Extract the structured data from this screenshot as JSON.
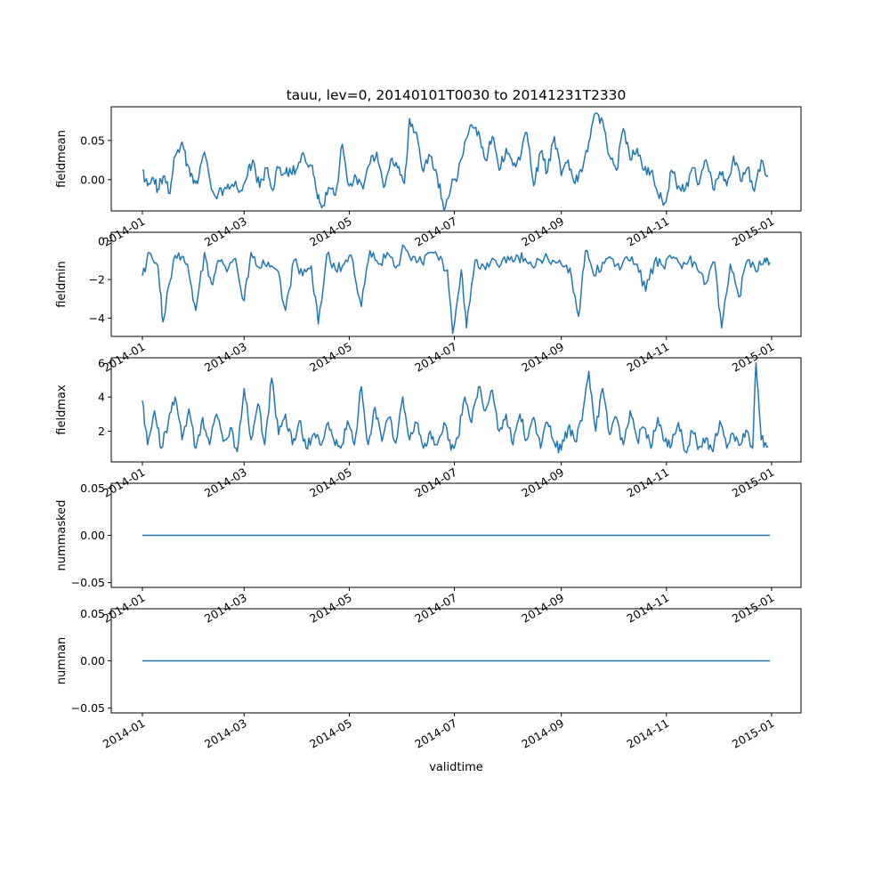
{
  "chart_data": {
    "type": "line",
    "title": "tauu, lev=0, 20140101T0030 to 20141231T2330",
    "xlabel": "validtime",
    "line_color": "#1f77b4",
    "grid": false,
    "x_ticks": [
      "2014-01",
      "2014-03",
      "2014-05",
      "2014-07",
      "2014-09",
      "2014-11",
      "2015-01"
    ],
    "x_range": [
      "2014-01-01",
      "2014-12-31"
    ],
    "panels": [
      {
        "ylabel": "fieldmean",
        "ylim": [
          -0.04,
          0.093
        ],
        "yticks": [
          "0.00",
          "0.05"
        ],
        "ytick_values": [
          0.0,
          0.05
        ],
        "series": {
          "x": [
            "2014-01-01",
            "2014-01-04",
            "2014-01-07",
            "2014-01-10",
            "2014-01-13",
            "2014-01-17",
            "2014-01-20",
            "2014-01-24",
            "2014-01-27",
            "2014-01-30",
            "2014-02-02",
            "2014-02-06",
            "2014-02-10",
            "2014-02-14",
            "2014-02-18",
            "2014-02-22",
            "2014-02-27",
            "2014-03-03",
            "2014-03-06",
            "2014-03-10",
            "2014-03-14",
            "2014-03-17",
            "2014-03-21",
            "2014-03-25",
            "2014-03-28",
            "2014-04-01",
            "2014-04-05",
            "2014-04-09",
            "2014-04-12",
            "2014-04-15",
            "2014-04-19",
            "2014-04-23",
            "2014-04-27",
            "2014-05-01",
            "2014-05-05",
            "2014-05-09",
            "2014-05-13",
            "2014-05-17",
            "2014-05-21",
            "2014-05-25",
            "2014-05-29",
            "2014-06-02",
            "2014-06-05",
            "2014-06-09",
            "2014-06-13",
            "2014-06-17",
            "2014-06-21",
            "2014-06-25",
            "2014-06-29",
            "2014-07-03",
            "2014-07-07",
            "2014-07-11",
            "2014-07-15",
            "2014-07-19",
            "2014-07-23",
            "2014-07-27",
            "2014-07-31",
            "2014-08-04",
            "2014-08-08",
            "2014-08-12",
            "2014-08-16",
            "2014-08-20",
            "2014-08-24",
            "2014-08-28",
            "2014-09-01",
            "2014-09-05",
            "2014-09-09",
            "2014-09-13",
            "2014-09-17",
            "2014-09-21",
            "2014-09-25",
            "2014-09-29",
            "2014-10-03",
            "2014-10-07",
            "2014-10-11",
            "2014-10-15",
            "2014-10-19",
            "2014-10-23",
            "2014-10-27",
            "2014-10-31",
            "2014-11-04",
            "2014-11-08",
            "2014-11-12",
            "2014-11-16",
            "2014-11-20",
            "2014-11-24",
            "2014-11-28",
            "2014-12-02",
            "2014-12-06",
            "2014-12-10",
            "2014-12-14",
            "2014-12-18",
            "2014-12-22",
            "2014-12-26",
            "2014-12-30"
          ],
          "y": [
            0.012,
            -0.008,
            0.003,
            -0.012,
            0.004,
            -0.018,
            0.03,
            0.048,
            0.02,
            0.005,
            -0.005,
            0.035,
            -0.012,
            -0.018,
            -0.01,
            -0.006,
            -0.014,
            0.005,
            0.025,
            -0.01,
            0.015,
            -0.012,
            0.015,
            0.008,
            0.01,
            0.015,
            0.03,
            0.018,
            -0.015,
            -0.036,
            -0.01,
            -0.02,
            0.045,
            -0.008,
            0.003,
            -0.012,
            0.02,
            0.035,
            -0.01,
            0.025,
            0.015,
            -0.005,
            0.078,
            0.06,
            0.01,
            0.03,
            0.005,
            -0.04,
            -0.01,
            0.005,
            0.048,
            0.07,
            0.062,
            0.025,
            0.055,
            0.012,
            0.04,
            0.018,
            0.025,
            0.06,
            -0.008,
            0.035,
            0.01,
            0.055,
            0.005,
            0.025,
            -0.005,
            0.01,
            0.048,
            0.085,
            0.075,
            0.03,
            0.012,
            0.065,
            0.025,
            0.04,
            0.012,
            0.01,
            -0.018,
            -0.03,
            0.012,
            -0.008,
            -0.012,
            0.015,
            -0.005,
            0.025,
            -0.012,
            0.01,
            -0.008,
            0.03,
            -0.002,
            0.015,
            -0.015,
            0.025,
            0.005
          ]
        }
      },
      {
        "ylabel": "fieldmin",
        "ylim": [
          -4.95,
          0.45
        ],
        "yticks": [
          "−4",
          "−2",
          "0"
        ],
        "ytick_values": [
          -4,
          -2,
          0
        ],
        "series": {
          "x": [
            "2014-01-01",
            "2014-01-05",
            "2014-01-10",
            "2014-01-13",
            "2014-01-19",
            "2014-01-24",
            "2014-01-28",
            "2014-02-01",
            "2014-02-06",
            "2014-02-10",
            "2014-02-14",
            "2014-02-19",
            "2014-02-24",
            "2014-03-01",
            "2014-03-05",
            "2014-03-10",
            "2014-03-15",
            "2014-03-20",
            "2014-03-25",
            "2014-03-30",
            "2014-04-04",
            "2014-04-09",
            "2014-04-13",
            "2014-04-18",
            "2014-04-23",
            "2014-04-28",
            "2014-05-03",
            "2014-05-08",
            "2014-05-13",
            "2014-05-18",
            "2014-05-23",
            "2014-05-28",
            "2014-06-02",
            "2014-06-07",
            "2014-06-12",
            "2014-06-17",
            "2014-06-22",
            "2014-06-27",
            "2014-06-30",
            "2014-07-05",
            "2014-07-08",
            "2014-07-13",
            "2014-07-18",
            "2014-07-23",
            "2014-07-28",
            "2014-08-02",
            "2014-08-07",
            "2014-08-12",
            "2014-08-17",
            "2014-08-22",
            "2014-08-27",
            "2014-09-01",
            "2014-09-06",
            "2014-09-11",
            "2014-09-15",
            "2014-09-20",
            "2014-09-25",
            "2014-09-30",
            "2014-10-05",
            "2014-10-10",
            "2014-10-15",
            "2014-10-20",
            "2014-10-25",
            "2014-10-30",
            "2014-11-04",
            "2014-11-09",
            "2014-11-14",
            "2014-11-19",
            "2014-11-24",
            "2014-11-29",
            "2014-12-03",
            "2014-12-08",
            "2014-12-13",
            "2014-12-18",
            "2014-12-23",
            "2014-12-28",
            "2014-12-31"
          ],
          "y": [
            -1.8,
            -0.6,
            -1.3,
            -4.2,
            -1.0,
            -0.8,
            -1.7,
            -3.6,
            -0.6,
            -2.2,
            -1.0,
            -1.6,
            -0.9,
            -3.1,
            -0.6,
            -1.4,
            -1.1,
            -1.5,
            -3.6,
            -1.0,
            -1.8,
            -1.3,
            -4.3,
            -0.7,
            -1.5,
            -1.2,
            -1.0,
            -3.4,
            -0.5,
            -1.2,
            -0.6,
            -1.4,
            -0.3,
            -0.8,
            -1.1,
            -0.6,
            -1.0,
            -1.5,
            -4.8,
            -1.5,
            -4.5,
            -1.0,
            -1.3,
            -0.9,
            -1.2,
            -1.0,
            -0.8,
            -1.1,
            -1.3,
            -0.9,
            -1.0,
            -1.2,
            -1.4,
            -3.9,
            -0.5,
            -1.8,
            -1.1,
            -0.9,
            -1.5,
            -1.0,
            -1.2,
            -2.6,
            -1.1,
            -1.3,
            -0.9,
            -1.2,
            -1.0,
            -1.5,
            -2.2,
            -1.1,
            -4.5,
            -1.2,
            -2.9,
            -1.0,
            -1.6,
            -0.9,
            -1.1
          ]
        }
      },
      {
        "ylabel": "fieldmax",
        "ylim": [
          0.2,
          6.3
        ],
        "yticks": [
          "2",
          "4",
          "6"
        ],
        "ytick_values": [
          2,
          4,
          6
        ],
        "series": {
          "x": [
            "2014-01-01",
            "2014-01-04",
            "2014-01-08",
            "2014-01-12",
            "2014-01-16",
            "2014-01-20",
            "2014-01-24",
            "2014-01-28",
            "2014-02-01",
            "2014-02-05",
            "2014-02-09",
            "2014-02-13",
            "2014-02-17",
            "2014-02-21",
            "2014-02-25",
            "2014-03-01",
            "2014-03-05",
            "2014-03-09",
            "2014-03-13",
            "2014-03-17",
            "2014-03-21",
            "2014-03-25",
            "2014-03-29",
            "2014-04-02",
            "2014-04-06",
            "2014-04-10",
            "2014-04-14",
            "2014-04-18",
            "2014-04-22",
            "2014-04-26",
            "2014-04-30",
            "2014-05-04",
            "2014-05-08",
            "2014-05-12",
            "2014-05-16",
            "2014-05-20",
            "2014-05-24",
            "2014-05-28",
            "2014-06-01",
            "2014-06-05",
            "2014-06-09",
            "2014-06-13",
            "2014-06-17",
            "2014-06-21",
            "2014-06-25",
            "2014-06-29",
            "2014-07-03",
            "2014-07-07",
            "2014-07-11",
            "2014-07-15",
            "2014-07-19",
            "2014-07-23",
            "2014-07-27",
            "2014-07-31",
            "2014-08-04",
            "2014-08-08",
            "2014-08-12",
            "2014-08-16",
            "2014-08-20",
            "2014-08-24",
            "2014-08-28",
            "2014-09-01",
            "2014-09-05",
            "2014-09-09",
            "2014-09-13",
            "2014-09-17",
            "2014-09-21",
            "2014-09-25",
            "2014-09-29",
            "2014-10-03",
            "2014-10-07",
            "2014-10-11",
            "2014-10-15",
            "2014-10-19",
            "2014-10-23",
            "2014-10-27",
            "2014-10-31",
            "2014-11-04",
            "2014-11-08",
            "2014-11-12",
            "2014-11-16",
            "2014-11-20",
            "2014-11-24",
            "2014-11-28",
            "2014-12-02",
            "2014-12-06",
            "2014-12-10",
            "2014-12-14",
            "2014-12-18",
            "2014-12-21",
            "2014-12-23",
            "2014-12-26",
            "2014-12-30"
          ],
          "y": [
            3.8,
            1.2,
            3.2,
            1.0,
            2.5,
            4.0,
            1.5,
            3.3,
            1.0,
            2.8,
            1.2,
            3.0,
            1.4,
            2.2,
            0.8,
            4.5,
            1.5,
            3.6,
            1.2,
            5.1,
            1.8,
            3.0,
            1.2,
            2.6,
            1.0,
            1.8,
            1.2,
            2.4,
            1.5,
            1.0,
            2.6,
            1.2,
            4.6,
            1.2,
            3.4,
            1.4,
            2.8,
            1.3,
            4.0,
            1.5,
            2.5,
            1.0,
            2.0,
            1.2,
            2.5,
            0.9,
            1.6,
            4.0,
            2.5,
            4.6,
            3.2,
            4.4,
            2.0,
            3.0,
            1.2,
            3.0,
            1.5,
            2.8,
            1.0,
            2.5,
            1.3,
            0.9,
            2.2,
            1.4,
            2.6,
            5.5,
            2.0,
            4.5,
            1.8,
            2.8,
            1.2,
            3.2,
            1.5,
            2.2,
            1.0,
            2.8,
            1.4,
            1.2,
            2.5,
            0.8,
            2.0,
            1.1,
            1.6,
            0.8,
            2.6,
            1.0,
            1.8,
            1.2,
            2.0,
            1.0,
            6.0,
            1.5,
            1.1
          ]
        }
      },
      {
        "ylabel": "nummasked",
        "ylim": [
          -0.055,
          0.055
        ],
        "yticks": [
          "−0.05",
          "0.00",
          "0.05"
        ],
        "ytick_values": [
          -0.05,
          0.0,
          0.05
        ],
        "series": {
          "x": [
            "2014-01-01",
            "2014-12-31"
          ],
          "y": [
            0,
            0
          ]
        }
      },
      {
        "ylabel": "numnan",
        "ylim": [
          -0.055,
          0.055
        ],
        "yticks": [
          "−0.05",
          "0.00",
          "0.05"
        ],
        "ytick_values": [
          -0.05,
          0.0,
          0.05
        ],
        "series": {
          "x": [
            "2014-01-01",
            "2014-12-31"
          ],
          "y": [
            0,
            0
          ]
        }
      }
    ]
  }
}
